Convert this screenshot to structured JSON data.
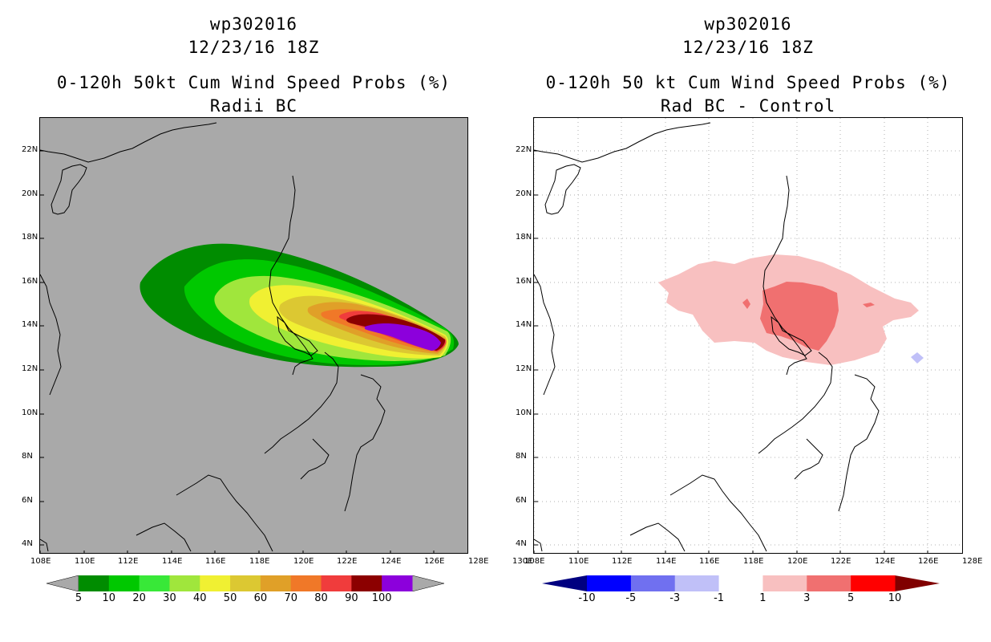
{
  "left": {
    "storm_id": "wp302016",
    "datetime": "12/23/16 18Z",
    "title": "0-120h 50kt Cum Wind Speed Probs (%)",
    "subtitle": "Radii BC",
    "background_color": "#a9a9a9",
    "colorbar": {
      "labels": [
        "5",
        "10",
        "20",
        "30",
        "40",
        "50",
        "60",
        "70",
        "80",
        "90",
        "100"
      ],
      "colors": [
        "#008c00",
        "#00c800",
        "#38e838",
        "#a0e63c",
        "#f0f032",
        "#dcc832",
        "#e0a028",
        "#f07828",
        "#f03c3c",
        "#8c0000",
        "#8c00dc"
      ],
      "arrow_color": "#a9a9a9"
    }
  },
  "right": {
    "storm_id": "wp302016",
    "datetime": "12/23/16 18Z",
    "title": "0-120h 50 kt Cum Wind Speed Probs (%)",
    "subtitle": "Rad BC - Control",
    "background_color": "#ffffff",
    "colorbar": {
      "labels": [
        "-10",
        "-5",
        "-3",
        "-1",
        "1",
        "3",
        "5",
        "10"
      ],
      "colors": [
        "#0000ff",
        "#7070f0",
        "#c0c0f8",
        "#ffffff",
        "#f8c0c0",
        "#f07070",
        "#ff0000"
      ],
      "arrow_colors": [
        "#000080",
        "#800000"
      ]
    }
  },
  "axes": {
    "x_ticks": [
      "108E",
      "110E",
      "112E",
      "114E",
      "116E",
      "118E",
      "120E",
      "122E",
      "124E",
      "126E",
      "128E",
      "130E"
    ],
    "y_ticks": [
      "22N",
      "20N",
      "18N",
      "16N",
      "14N",
      "12N",
      "10N",
      "8N",
      "6N",
      "4N"
    ]
  }
}
